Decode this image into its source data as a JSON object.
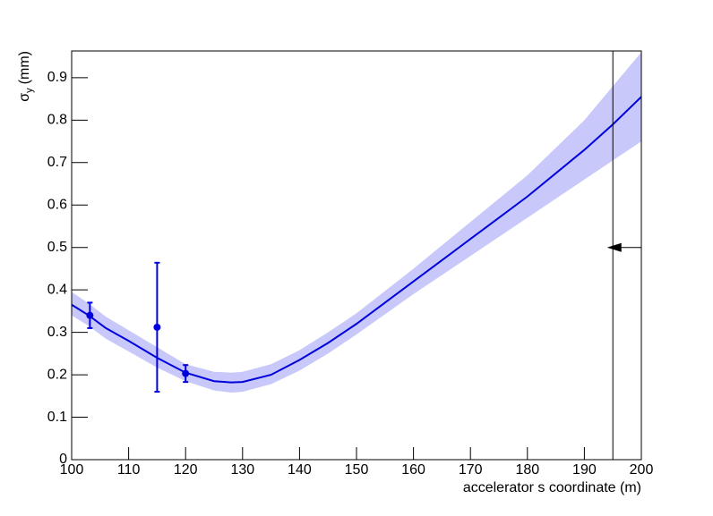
{
  "chart_data": {
    "type": "line",
    "xlabel": "accelerator s coordinate (m)",
    "ylabel": "σ",
    "ylabel_sub": "y",
    "ylabel_unit": "(mm)",
    "xlim": [
      100,
      200
    ],
    "ylim": [
      0,
      0.963
    ],
    "xticks": [
      100,
      110,
      120,
      130,
      140,
      150,
      160,
      170,
      180,
      190,
      200
    ],
    "yticks": [
      0,
      0.1,
      0.2,
      0.3,
      0.4,
      0.5,
      0.6,
      0.7,
      0.8,
      0.9
    ],
    "fit": {
      "color": "#0000dd",
      "band_color": "#c8c8fa",
      "x": [
        100,
        103,
        106,
        110,
        115,
        120,
        125,
        128,
        130,
        135,
        140,
        145,
        150,
        160,
        170,
        180,
        190,
        195,
        200
      ],
      "values": [
        0.365,
        0.34,
        0.31,
        0.28,
        0.24,
        0.205,
        0.185,
        0.182,
        0.183,
        0.2,
        0.235,
        0.275,
        0.32,
        0.42,
        0.52,
        0.62,
        0.73,
        0.79,
        0.855
      ],
      "band_upper": [
        0.395,
        0.368,
        0.337,
        0.305,
        0.265,
        0.225,
        0.207,
        0.205,
        0.207,
        0.225,
        0.258,
        0.3,
        0.345,
        0.45,
        0.56,
        0.67,
        0.8,
        0.88,
        0.96
      ],
      "band_lower": [
        0.34,
        0.315,
        0.285,
        0.255,
        0.217,
        0.185,
        0.163,
        0.158,
        0.16,
        0.178,
        0.21,
        0.25,
        0.295,
        0.39,
        0.48,
        0.57,
        0.66,
        0.705,
        0.75
      ]
    },
    "points": {
      "color": "#0000dd",
      "x": [
        103.2,
        115,
        120
      ],
      "values": [
        0.34,
        0.312,
        0.203
      ],
      "errors": [
        0.03,
        0.152,
        0.02
      ]
    },
    "vline": 195,
    "arrow": {
      "y": 0.5,
      "x": [
        200,
        196.5
      ]
    }
  }
}
